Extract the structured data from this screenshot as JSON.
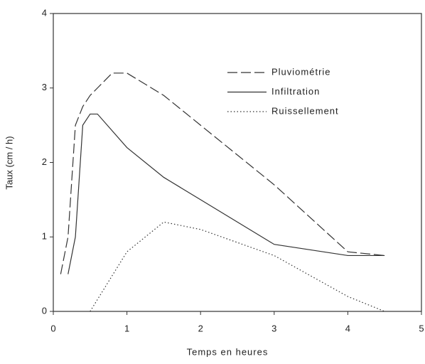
{
  "chart_data": {
    "type": "line",
    "xlabel": "Temps en heures",
    "ylabel": "Taux (cm / h)",
    "xlim": [
      0,
      5
    ],
    "xticks": [
      0,
      1,
      2,
      3,
      4,
      5
    ],
    "ylim": [
      0,
      4
    ],
    "yticks": [
      0,
      1,
      2,
      3,
      4
    ],
    "legend": "upper right",
    "series": [
      {
        "name": "Pluviométrie",
        "color": "#333333",
        "style": "dashed",
        "x": [
          0.1,
          0.2,
          0.3,
          0.4,
          0.5,
          0.6,
          0.8,
          1.0,
          1.5,
          2,
          3,
          4,
          4.5
        ],
        "values": [
          0.5,
          1.0,
          2.5,
          2.75,
          2.9,
          3.0,
          3.2,
          3.2,
          2.9,
          2.5,
          1.7,
          0.8,
          0.75
        ]
      },
      {
        "name": "Infiltration",
        "color": "#333333",
        "style": "solid",
        "x": [
          0.2,
          0.3,
          0.4,
          0.5,
          0.6,
          1.0,
          1.5,
          2,
          3,
          4,
          4.5
        ],
        "values": [
          0.5,
          1.0,
          2.5,
          2.65,
          2.65,
          2.2,
          1.8,
          1.5,
          0.9,
          0.75,
          0.75
        ]
      },
      {
        "name": "Ruissellement",
        "color": "#333333",
        "style": "dotted",
        "x": [
          0.5,
          1.0,
          1.5,
          2,
          3,
          4,
          4.5
        ],
        "values": [
          0,
          0.8,
          1.2,
          1.1,
          0.75,
          0.2,
          0
        ]
      }
    ]
  }
}
